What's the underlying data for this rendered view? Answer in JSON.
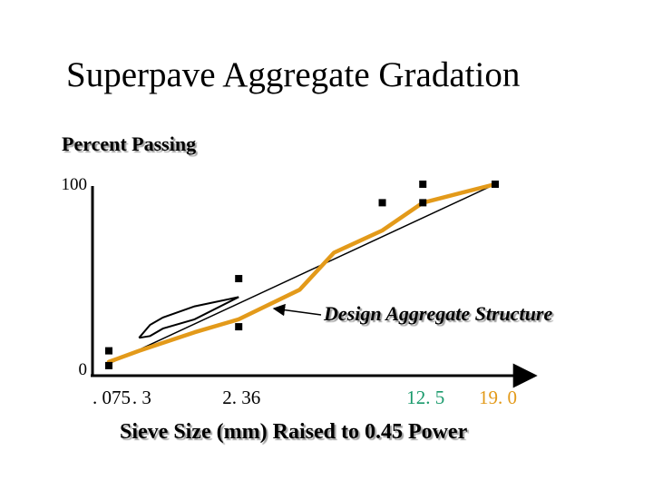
{
  "slide": {
    "title": "Superpave Aggregate Gradation"
  },
  "chart_data": {
    "type": "line",
    "ylabel": "Percent Passing",
    "xlabel": "Sieve Size (mm) Raised to 0.45 Power",
    "y_ticks": [
      {
        "value": 100,
        "label": "100"
      },
      {
        "value": 0,
        "label": "0"
      }
    ],
    "x_ticks": [
      {
        "value": 0.075,
        "label": ". 075",
        "color": "#000000"
      },
      {
        "value": 0.3,
        "label": ". 3",
        "color": "#000000"
      },
      {
        "value": 2.36,
        "label": "2. 36",
        "color": "#000000"
      },
      {
        "value": 12.5,
        "label": "12. 5",
        "color": "#1a9a6c"
      },
      {
        "value": 19.0,
        "label": "19. 0",
        "color": "#e39a1a"
      }
    ],
    "x_scale_power": 0.45,
    "ylim": [
      0,
      100
    ],
    "annotation": "Design Aggregate Structure",
    "max_density_line": {
      "points": [
        {
          "x": 0.075,
          "y": 3
        },
        {
          "x": 19.0,
          "y": 100
        }
      ],
      "color": "#000000"
    },
    "control_points": {
      "marker": "square",
      "color": "#000000",
      "points": [
        {
          "x": 0.075,
          "y": 2
        },
        {
          "x": 0.075,
          "y": 10
        },
        {
          "x": 2.36,
          "y": 23
        },
        {
          "x": 2.36,
          "y": 49
        },
        {
          "x": 9.5,
          "y": 90
        },
        {
          "x": 12.5,
          "y": 90
        },
        {
          "x": 12.5,
          "y": 100
        },
        {
          "x": 19.0,
          "y": 100
        }
      ]
    },
    "restricted_zone": {
      "color": "#000000",
      "lower": [
        {
          "x": 0.3,
          "y": 17
        },
        {
          "x": 0.425,
          "y": 18
        },
        {
          "x": 0.6,
          "y": 22
        },
        {
          "x": 1.18,
          "y": 27
        },
        {
          "x": 2.36,
          "y": 39
        }
      ],
      "upper": [
        {
          "x": 0.3,
          "y": 17
        },
        {
          "x": 0.425,
          "y": 24
        },
        {
          "x": 0.6,
          "y": 28
        },
        {
          "x": 1.18,
          "y": 34
        },
        {
          "x": 2.36,
          "y": 39
        }
      ]
    },
    "series": [
      {
        "name": "Design Aggregate Structure",
        "color": "#e39a1a",
        "points": [
          {
            "x": 0.075,
            "y": 4
          },
          {
            "x": 0.3,
            "y": 10
          },
          {
            "x": 1.18,
            "y": 20
          },
          {
            "x": 2.36,
            "y": 27
          },
          {
            "x": 4.75,
            "y": 43
          },
          {
            "x": 6.5,
            "y": 63
          },
          {
            "x": 9.5,
            "y": 75
          },
          {
            "x": 12.5,
            "y": 90
          },
          {
            "x": 19.0,
            "y": 100
          }
        ]
      }
    ]
  }
}
